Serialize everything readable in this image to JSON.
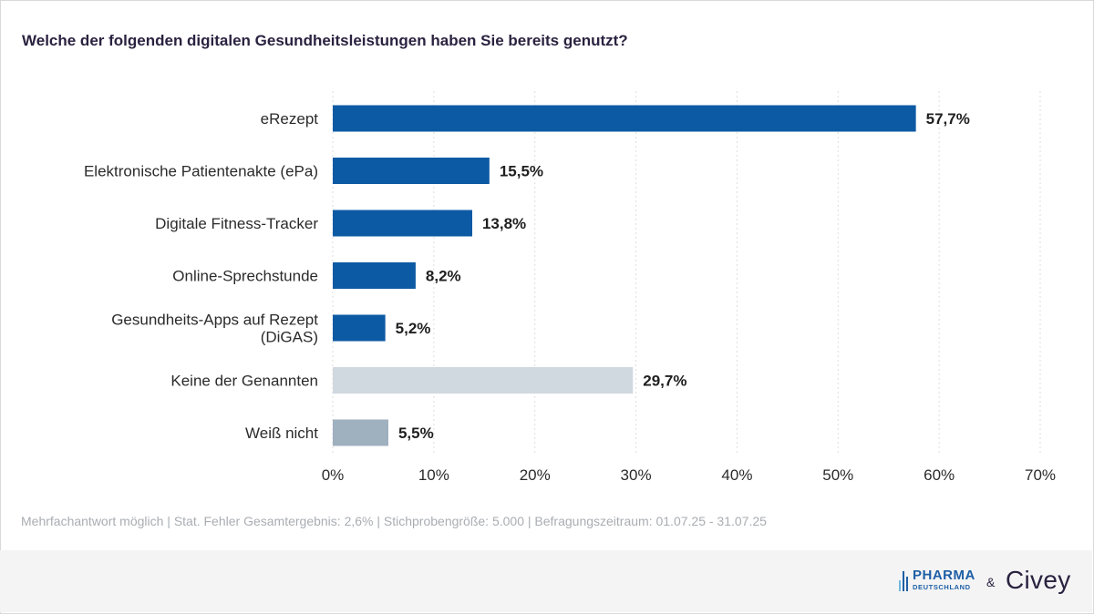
{
  "title": "Welche der folgenden digitalen Gesundheitsleistungen haben Sie bereits genutzt?",
  "footnote": "Mehrfachantwort möglich | Stat. Fehler Gesamtergebnis: 2,6% | Stichprobengröße: 5.000 | Befragungszeitraum: 01.07.25 - 31.07.25",
  "logos": {
    "pharma_main": "PHARMA",
    "pharma_sub": "DEUTSCHLAND",
    "ampersand": "&",
    "civey": "Civey"
  },
  "colors": {
    "primary": "#0d5aa4",
    "light": "#d0d8e0",
    "medium": "#9fb0bf",
    "title": "#2b2240",
    "grid": "#dedede"
  },
  "chart_data": {
    "type": "bar",
    "orientation": "horizontal",
    "title": "Welche der folgenden digitalen Gesundheitsleistungen haben Sie bereits genutzt?",
    "categories": [
      [
        "eRezept"
      ],
      [
        "Elektronische Patientenakte (ePa)"
      ],
      [
        "Digitale Fitness-Tracker"
      ],
      [
        "Online-Sprechstunde"
      ],
      [
        "Gesundheits-Apps auf Rezept",
        "(DiGAS)"
      ],
      [
        "Keine der Genannten"
      ],
      [
        "Weiß nicht"
      ]
    ],
    "values": [
      57.7,
      15.5,
      13.8,
      8.2,
      5.2,
      29.7,
      5.5
    ],
    "value_labels": [
      "57,7%",
      "15,5%",
      "13,8%",
      "8,2%",
      "5,2%",
      "29,7%",
      "5,5%"
    ],
    "bar_color_keys": [
      "primary",
      "primary",
      "primary",
      "primary",
      "primary",
      "light",
      "medium"
    ],
    "xlim": [
      0,
      70
    ],
    "xticks": [
      0,
      10,
      20,
      30,
      40,
      50,
      60,
      70
    ],
    "xtick_labels": [
      "0%",
      "10%",
      "20%",
      "30%",
      "40%",
      "50%",
      "60%",
      "70%"
    ],
    "grid": true
  }
}
